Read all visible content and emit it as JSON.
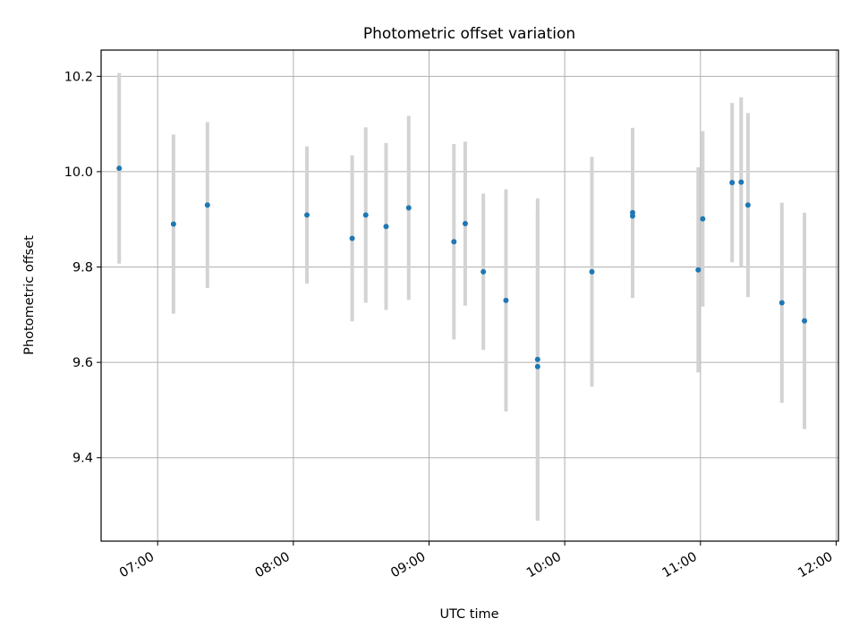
{
  "chart_data": {
    "type": "scatter",
    "title": "Photometric offset variation",
    "xlabel": "UTC time",
    "ylabel": "Photometric offset",
    "grid": true,
    "x_tick_labels": [
      "07:00",
      "08:00",
      "09:00",
      "10:00",
      "11:00",
      "12:00"
    ],
    "y_tick_labels": [
      "9.4",
      "9.6",
      "9.8",
      "10.0",
      "10.2"
    ],
    "y_ticks": [
      9.4,
      9.6,
      9.8,
      10.0,
      10.2
    ],
    "xlim": [
      "06:35",
      "12:01"
    ],
    "ylim": [
      9.225,
      10.255
    ],
    "marker_color": "#1f77b4",
    "errorbar_color": "#d3d3d3",
    "grid_color": "#b0b0b0",
    "series": [
      {
        "points": [
          {
            "x": "06:43",
            "y": 10.007,
            "yerr": 0.2
          },
          {
            "x": "07:07",
            "y": 9.89,
            "yerr": 0.188
          },
          {
            "x": "07:22",
            "y": 9.93,
            "yerr": 0.174
          },
          {
            "x": "08:06",
            "y": 9.909,
            "yerr": 0.144
          },
          {
            "x": "08:26",
            "y": 9.86,
            "yerr": 0.174
          },
          {
            "x": "08:32",
            "y": 9.909,
            "yerr": 0.184
          },
          {
            "x": "08:41",
            "y": 9.885,
            "yerr": 0.175
          },
          {
            "x": "08:51",
            "y": 9.924,
            "yerr": 0.193
          },
          {
            "x": "09:11",
            "y": 9.853,
            "yerr": 0.205
          },
          {
            "x": "09:16",
            "y": 9.891,
            "yerr": 0.172
          },
          {
            "x": "09:24",
            "y": 9.79,
            "yerr": 0.164
          },
          {
            "x": "09:34",
            "y": 9.73,
            "yerr": 0.233
          },
          {
            "x": "09:48",
            "y": 9.606,
            "yerr": 0.338
          },
          {
            "x": "09:48",
            "y": 9.591,
            "yerr": 0.323
          },
          {
            "x": "10:12",
            "y": 9.79,
            "yerr": 0.241
          },
          {
            "x": "10:30",
            "y": 9.914,
            "yerr": 0.178
          },
          {
            "x": "10:30",
            "y": 9.907,
            "yerr": 0.172
          },
          {
            "x": "10:59",
            "y": 9.794,
            "yerr": 0.215
          },
          {
            "x": "11:01",
            "y": 9.901,
            "yerr": 0.184
          },
          {
            "x": "11:14",
            "y": 9.977,
            "yerr": 0.167
          },
          {
            "x": "11:18",
            "y": 9.978,
            "yerr": 0.178
          },
          {
            "x": "11:21",
            "y": 9.93,
            "yerr": 0.193
          },
          {
            "x": "11:36",
            "y": 9.725,
            "yerr": 0.21
          },
          {
            "x": "11:46",
            "y": 9.687,
            "yerr": 0.227
          }
        ]
      }
    ]
  }
}
